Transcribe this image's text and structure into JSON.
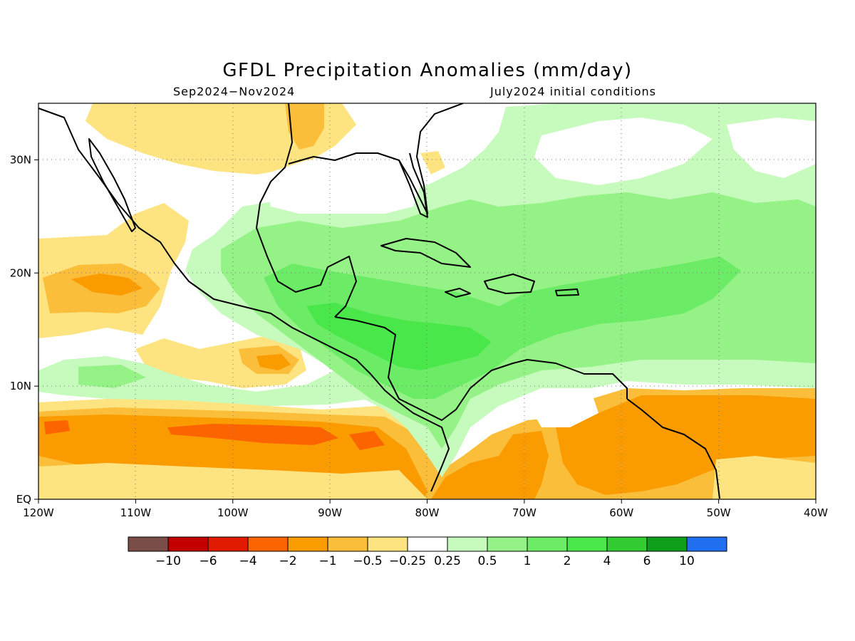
{
  "title": "GFDL Precipitation Anomalies (mm/day)",
  "subtitle_left": "Sep2024−Nov2024",
  "subtitle_right": "July2024 initial conditions",
  "map": {
    "lon_range": [
      -120,
      -40
    ],
    "lat_range": [
      0,
      35
    ],
    "x_ticks": [
      "120W",
      "110W",
      "100W",
      "90W",
      "80W",
      "70W",
      "60W",
      "50W",
      "40W"
    ],
    "y_ticks": [
      "EQ",
      "10N",
      "20N",
      "30N"
    ]
  },
  "colorbar": {
    "labels": [
      "−10",
      "−6",
      "−4",
      "−2",
      "−1",
      "−0.5",
      "−0.25",
      "0.25",
      "0.5",
      "1",
      "2",
      "4",
      "6",
      "10"
    ],
    "colors": [
      "#7a4e46",
      "#c30000",
      "#e11b00",
      "#fb6400",
      "#fa9b00",
      "#fbbe3a",
      "#fee381",
      "#ffffff",
      "#c6fbbd",
      "#95f286",
      "#6cec66",
      "#4ae74a",
      "#33cc33",
      "#0f9e1a",
      "#1f6ff0"
    ]
  }
}
